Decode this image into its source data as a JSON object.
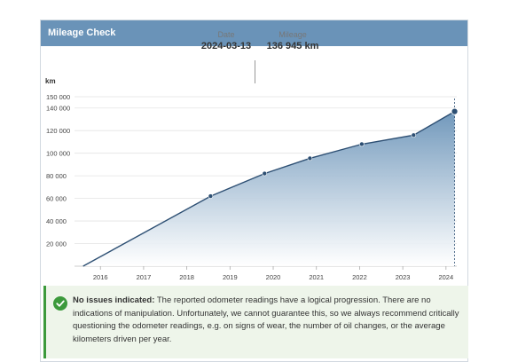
{
  "header": {
    "title": "Mileage Check"
  },
  "summary": {
    "date_label": "Date",
    "date_value": "2024-03-13",
    "mileage_label": "Mileage",
    "mileage_value": "136 945 km"
  },
  "chart_data": {
    "type": "area",
    "ylabel": "km",
    "xlabel": "",
    "ylim": [
      0,
      150000
    ],
    "xlim": [
      2015.4,
      2024.25
    ],
    "y_ticks": [
      "20 000",
      "40 000",
      "60 000",
      "80 000",
      "100 000",
      "120 000",
      "140 000",
      "150 000"
    ],
    "y_tick_values": [
      20000,
      40000,
      60000,
      80000,
      100000,
      120000,
      140000,
      150000
    ],
    "x_ticks": [
      "2016",
      "2017",
      "2018",
      "2019",
      "2020",
      "2021",
      "2022",
      "2023",
      "2024"
    ],
    "x_tick_values": [
      2016,
      2017,
      2018,
      2019,
      2020,
      2021,
      2022,
      2023,
      2024
    ],
    "x": [
      2015.6,
      2018.55,
      2019.8,
      2020.85,
      2022.05,
      2023.25,
      2024.2
    ],
    "y": [
      0,
      62000,
      82000,
      95500,
      108000,
      116000,
      136945
    ],
    "markers": [
      false,
      true,
      true,
      true,
      true,
      true,
      true
    ],
    "colors": {
      "line": "#2d4f73",
      "area_top": "#6a93b8",
      "area_bottom": "#ffffff"
    }
  },
  "note": {
    "headline": "No issues indicated:",
    "body": " The reported odometer readings have a logical progression. There are no indications of manipulation. Unfortunately, we cannot guarantee this, so we always recommend critically questioning the odometer readings, e.g. on signs of wear, the number of oil changes, or the average kilometers driven per year.",
    "icon": "check-circle-icon",
    "accent": "#3c9a3c"
  }
}
